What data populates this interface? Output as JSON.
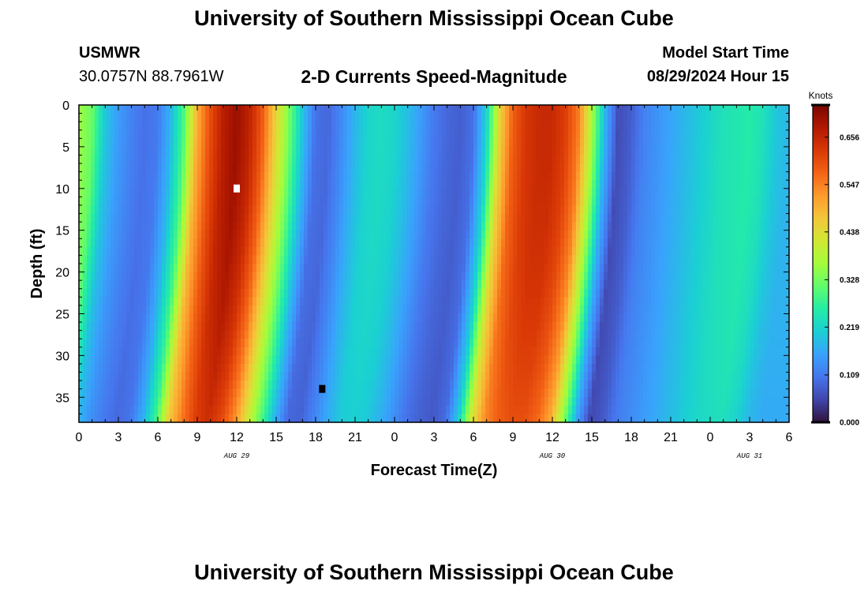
{
  "header": {
    "title": "University of Southern Mississippi Ocean Cube",
    "station": "USMWR",
    "coords": "30.0757N  88.7961W",
    "subtitle": "2-D Currents Speed-Magnitude",
    "model_start_label": "Model Start Time",
    "model_start_value": "08/29/2024 Hour 15",
    "footer_title": "University of Southern Mississippi Ocean Cube"
  },
  "chart_data": {
    "type": "heatmap",
    "title": "2-D Currents Speed-Magnitude",
    "xlabel": "Forecast Time(Z)",
    "ylabel": "Depth (ft)",
    "x_tick_labels": [
      "0",
      "3",
      "6",
      "9",
      "12",
      "15",
      "18",
      "21",
      "0",
      "3",
      "6",
      "9",
      "12",
      "15",
      "18",
      "21",
      "0",
      "3",
      "6"
    ],
    "x_date_labels": [
      {
        "label": "AUG 29",
        "hour": 12
      },
      {
        "label": "AUG 30",
        "hour": 36
      },
      {
        "label": "AUG 31",
        "hour": 51
      }
    ],
    "xlim_hours": [
      0,
      54
    ],
    "y_tick_labels": [
      "0",
      "5",
      "10",
      "15",
      "20",
      "25",
      "30",
      "35"
    ],
    "ylim": [
      0,
      38
    ],
    "y_inverted": true,
    "colorbar": {
      "unit": "Knots",
      "tick_labels": [
        "0.656",
        "0.547",
        "0.438",
        "0.328",
        "0.219",
        "0.109",
        "0.000"
      ],
      "min": 0.0,
      "max": 0.73
    },
    "speed_profile_surface": [
      {
        "hour": 0,
        "value": 0.36
      },
      {
        "hour": 1,
        "value": 0.32
      },
      {
        "hour": 2,
        "value": 0.2
      },
      {
        "hour": 3,
        "value": 0.15
      },
      {
        "hour": 4,
        "value": 0.12
      },
      {
        "hour": 5,
        "value": 0.1
      },
      {
        "hour": 6,
        "value": 0.11
      },
      {
        "hour": 7,
        "value": 0.18
      },
      {
        "hour": 8,
        "value": 0.3
      },
      {
        "hour": 9,
        "value": 0.5
      },
      {
        "hour": 10,
        "value": 0.6
      },
      {
        "hour": 11,
        "value": 0.67
      },
      {
        "hour": 12,
        "value": 0.7
      },
      {
        "hour": 13,
        "value": 0.66
      },
      {
        "hour": 14,
        "value": 0.58
      },
      {
        "hour": 15,
        "value": 0.45
      },
      {
        "hour": 16,
        "value": 0.33
      },
      {
        "hour": 17,
        "value": 0.2
      },
      {
        "hour": 18,
        "value": 0.1
      },
      {
        "hour": 19,
        "value": 0.09
      },
      {
        "hour": 20,
        "value": 0.13
      },
      {
        "hour": 21,
        "value": 0.18
      },
      {
        "hour": 22,
        "value": 0.22
      },
      {
        "hour": 23,
        "value": 0.23
      },
      {
        "hour": 24,
        "value": 0.22
      },
      {
        "hour": 25,
        "value": 0.19
      },
      {
        "hour": 26,
        "value": 0.15
      },
      {
        "hour": 27,
        "value": 0.11
      },
      {
        "hour": 28,
        "value": 0.09
      },
      {
        "hour": 29,
        "value": 0.08
      },
      {
        "hour": 30,
        "value": 0.1
      },
      {
        "hour": 31,
        "value": 0.22
      },
      {
        "hour": 32,
        "value": 0.45
      },
      {
        "hour": 33,
        "value": 0.58
      },
      {
        "hour": 34,
        "value": 0.63
      },
      {
        "hour": 35,
        "value": 0.65
      },
      {
        "hour": 36,
        "value": 0.65
      },
      {
        "hour": 37,
        "value": 0.62
      },
      {
        "hour": 38,
        "value": 0.55
      },
      {
        "hour": 39,
        "value": 0.38
      },
      {
        "hour": 40,
        "value": 0.18
      },
      {
        "hour": 41,
        "value": 0.06
      },
      {
        "hour": 42,
        "value": 0.08
      },
      {
        "hour": 43,
        "value": 0.12
      },
      {
        "hour": 44,
        "value": 0.14
      },
      {
        "hour": 45,
        "value": 0.16
      },
      {
        "hour": 46,
        "value": 0.18
      },
      {
        "hour": 47,
        "value": 0.2
      },
      {
        "hour": 48,
        "value": 0.22
      },
      {
        "hour": 49,
        "value": 0.24
      },
      {
        "hour": 50,
        "value": 0.25
      },
      {
        "hour": 51,
        "value": 0.26
      },
      {
        "hour": 52,
        "value": 0.24
      },
      {
        "hour": 53,
        "value": 0.2
      },
      {
        "hour": 54,
        "value": 0.18
      }
    ],
    "markers": [
      {
        "hour": 12,
        "depth": 10,
        "color": "#ffffff"
      },
      {
        "hour": 18.5,
        "depth": 34,
        "color": "#000000"
      }
    ],
    "colors": {
      "colormap": [
        "#30123b",
        "#4145ab",
        "#4675ed",
        "#39a2fc",
        "#1bcfd4",
        "#24eca6",
        "#61fc6c",
        "#a4fc3c",
        "#d1e834",
        "#f3c63a",
        "#fe9b2d",
        "#f36315",
        "#d93806",
        "#b11901",
        "#7a0402"
      ]
    }
  }
}
